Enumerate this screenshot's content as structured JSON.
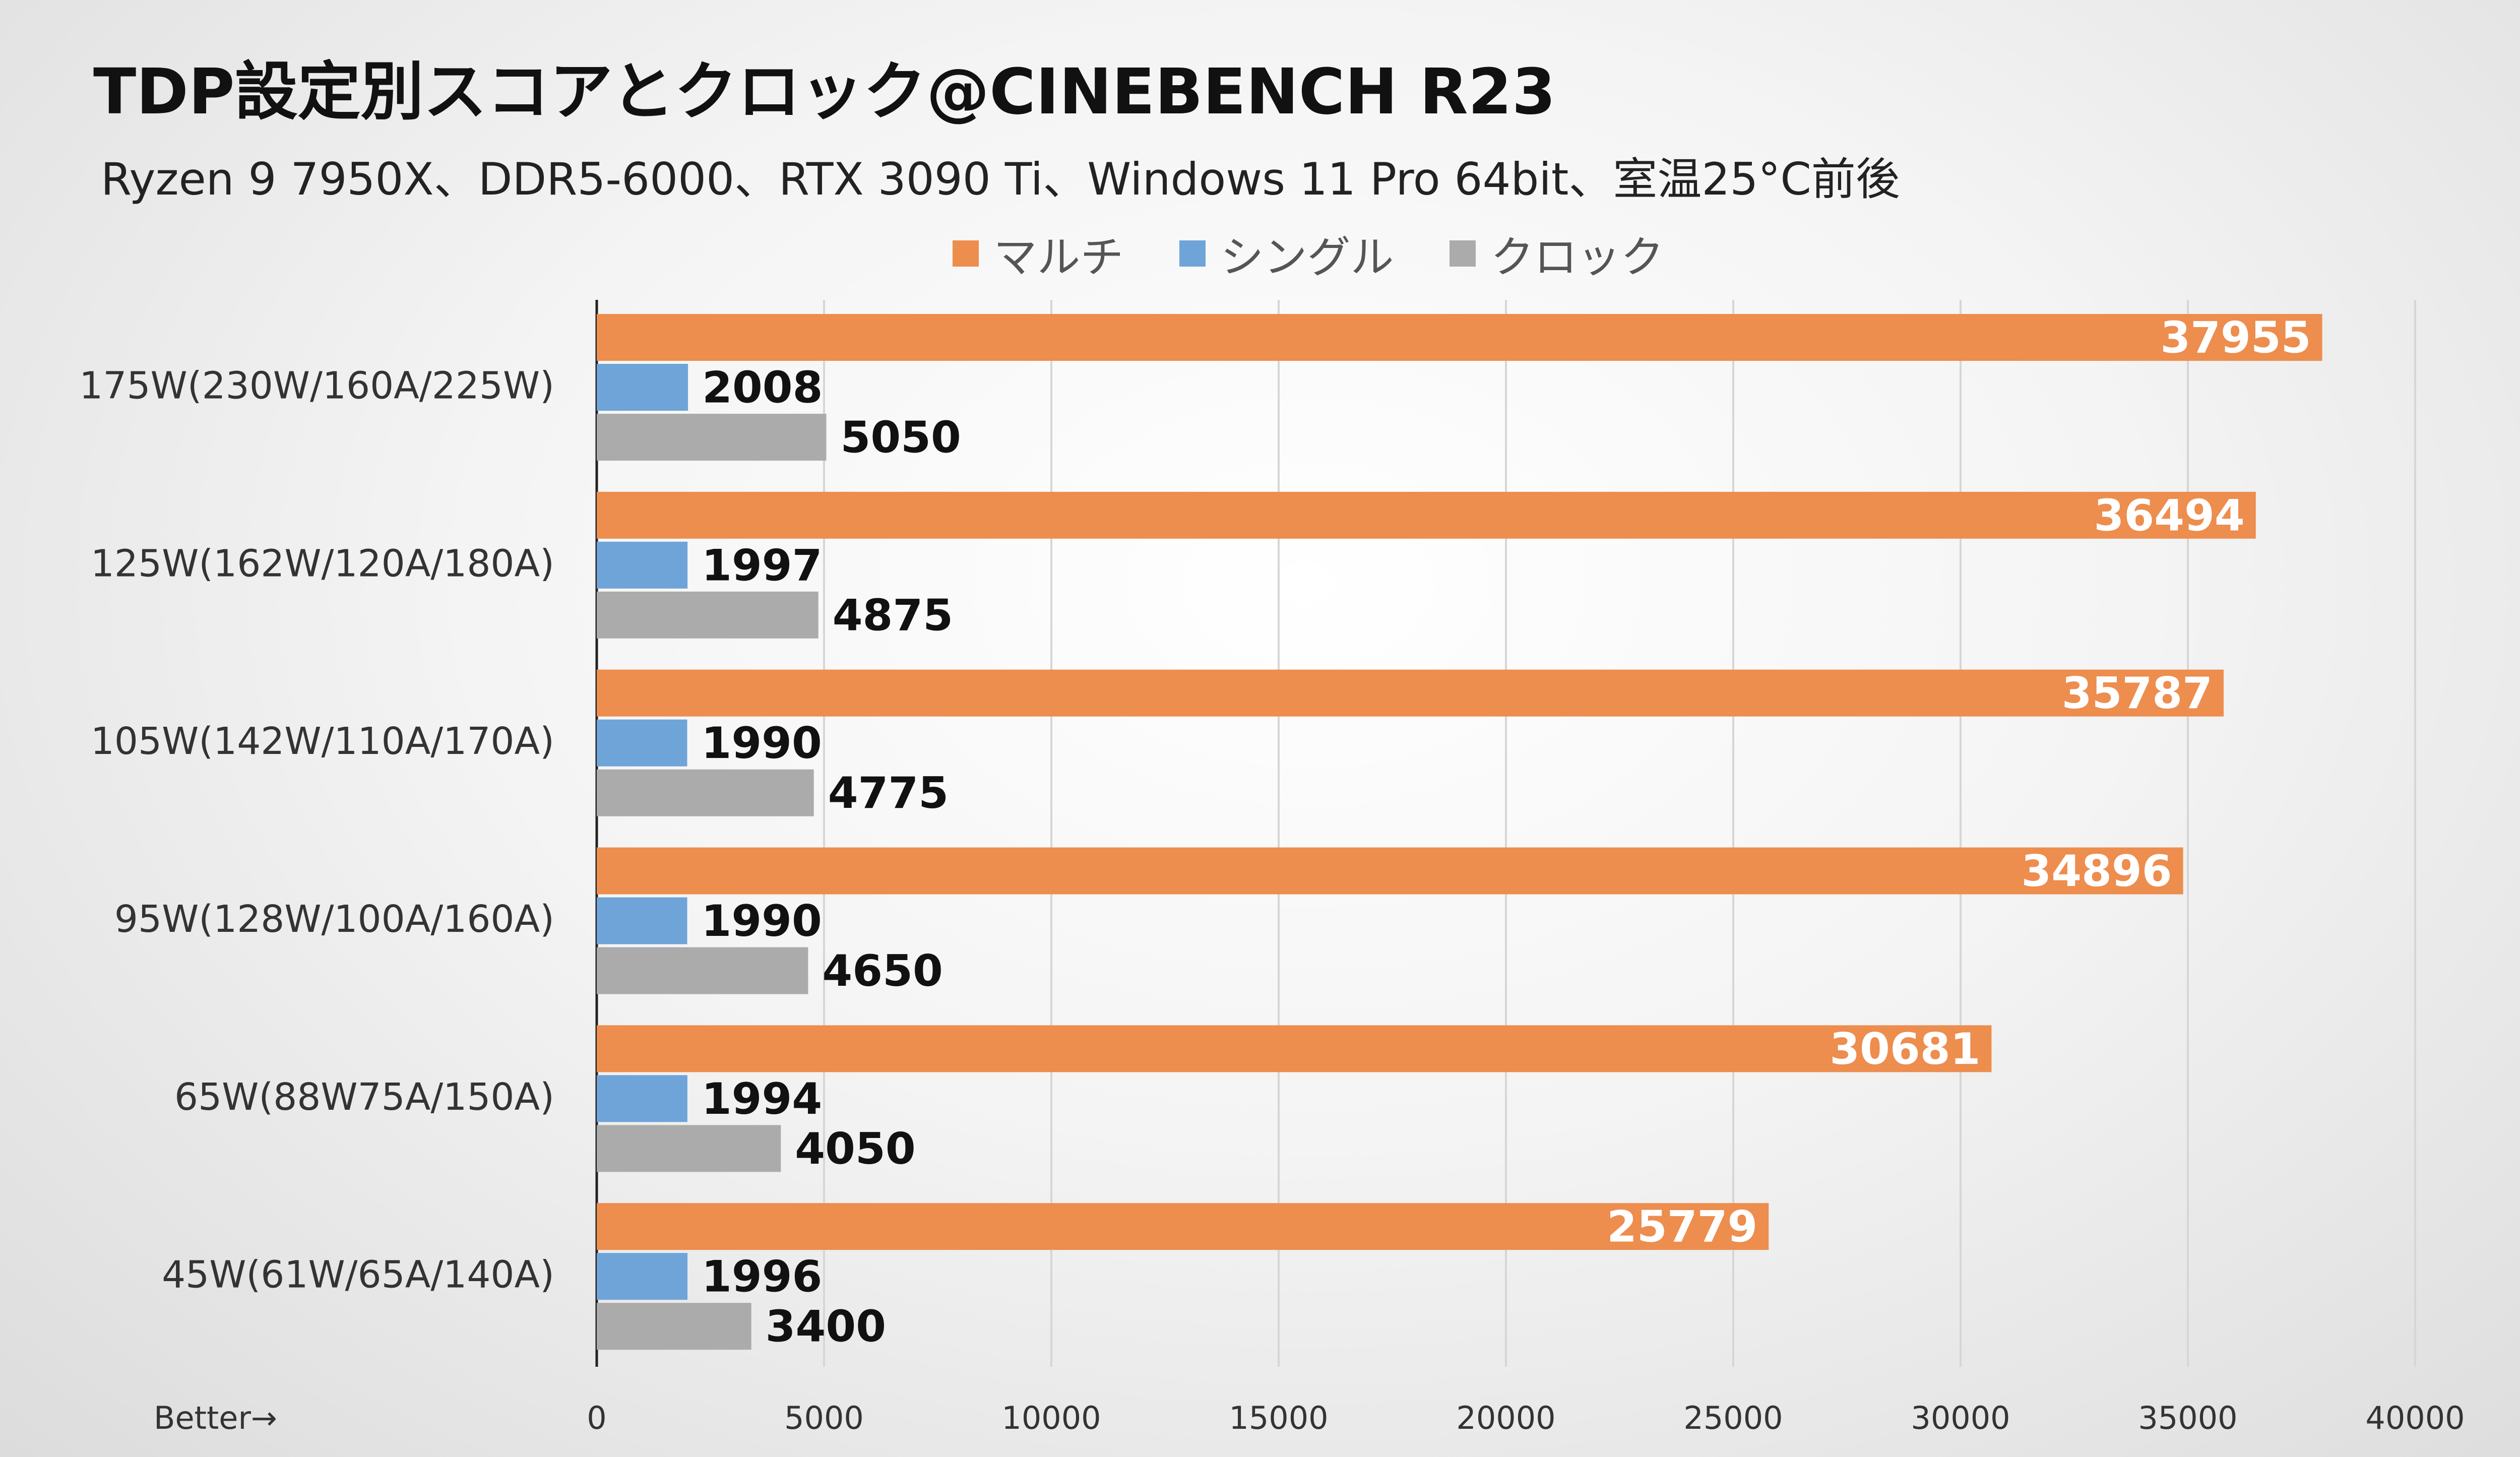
{
  "title": "TDP設定別スコアとクロック@CINEBENCH R23",
  "subtitle": "Ryzen 9 7950X、DDR5-6000、RTX 3090 Ti、Windows 11 Pro 64bit、室温25°C前後",
  "better_label": "Better→",
  "chart_data": {
    "type": "bar",
    "orientation": "horizontal",
    "categories": [
      "175W(230W/160A/225W)",
      "125W(162W/120A/180A)",
      "105W(142W/110A/170A)",
      "95W(128W/100A/160A)",
      "65W(88W75A/150A)",
      "45W(61W/65A/140A)"
    ],
    "series": [
      {
        "name": "マルチ",
        "color": "#ED8D4E",
        "values": [
          37955,
          36494,
          35787,
          34896,
          30681,
          25779
        ]
      },
      {
        "name": "シングル",
        "color": "#6FA4D8",
        "values": [
          2008,
          1997,
          1990,
          1990,
          1994,
          1996
        ]
      },
      {
        "name": "クロック",
        "color": "#ABABAB",
        "values": [
          5050,
          4875,
          4775,
          4650,
          4050,
          3400
        ]
      }
    ],
    "xlim": [
      0,
      40000
    ],
    "xticks": [
      "0",
      "5000",
      "10000",
      "15000",
      "20000",
      "25000",
      "30000",
      "35000",
      "40000"
    ],
    "grid": true,
    "legend_position": "top"
  }
}
